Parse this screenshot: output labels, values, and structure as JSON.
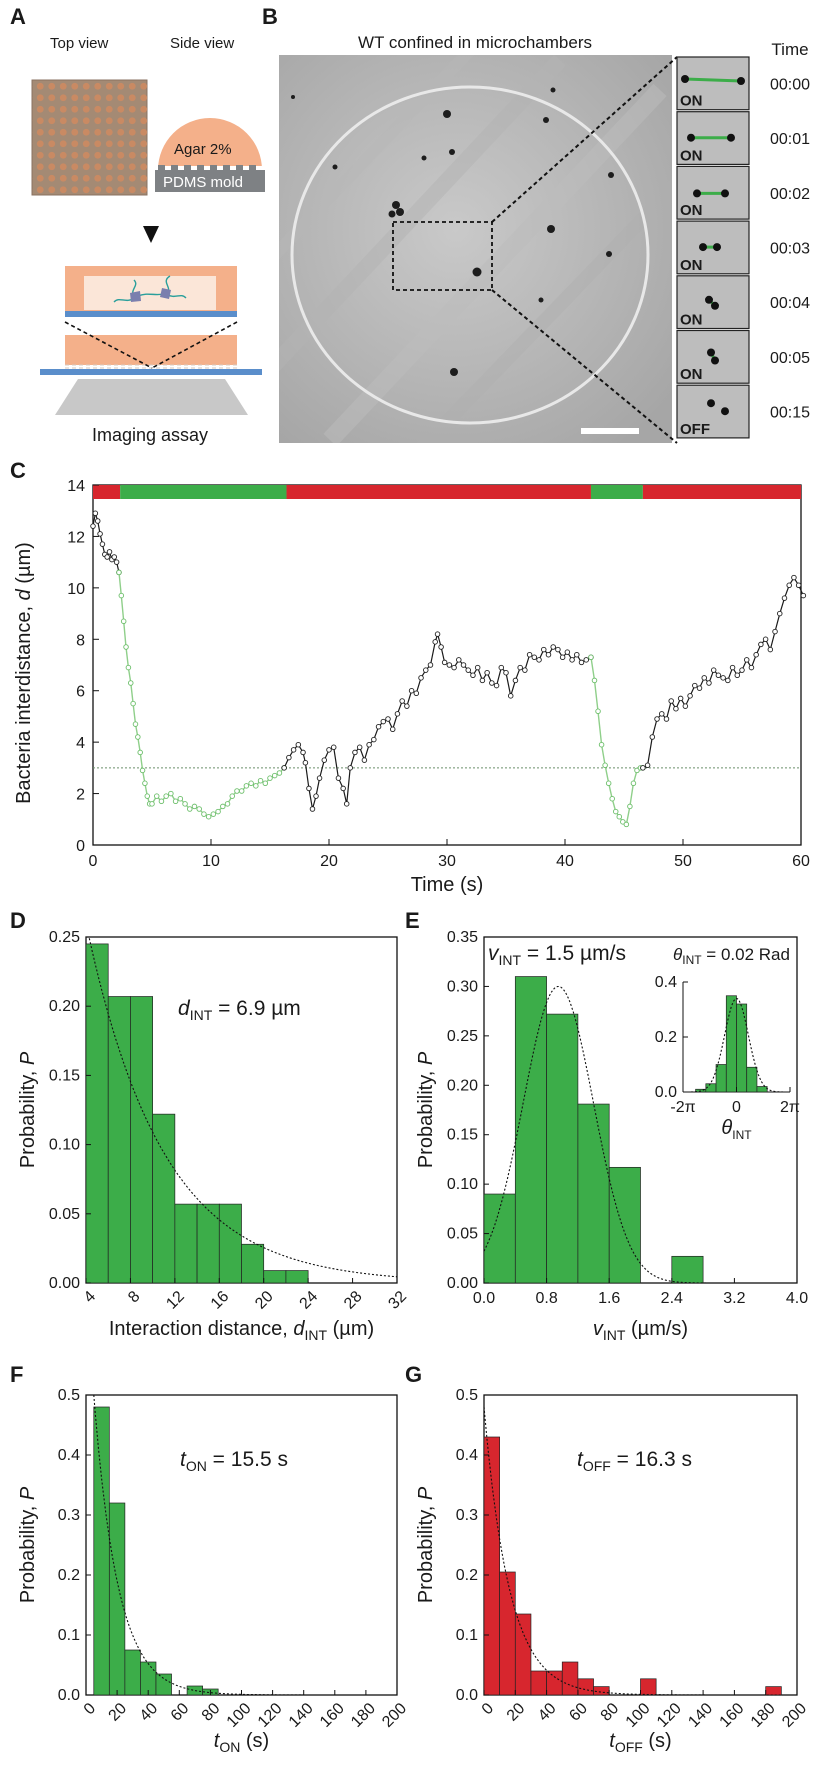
{
  "panels": {
    "A": {
      "letter": "A",
      "top_view": "Top view",
      "side_view": "Side view",
      "agar": "Agar 2%",
      "pdms": "PDMS mold",
      "caption": "Imaging assay",
      "colors": {
        "chamber": "#a48a74",
        "agar": "#f4b08a",
        "mold": "#7e8184",
        "glass": "#5a8ecb",
        "objective": "#c8c8c8"
      }
    },
    "B": {
      "letter": "B",
      "title": "WT confined in microchambers",
      "time_header": "Time",
      "frames": [
        {
          "state": "ON",
          "time": "00:00"
        },
        {
          "state": "ON",
          "time": "00:01"
        },
        {
          "state": "ON",
          "time": "00:02"
        },
        {
          "state": "ON",
          "time": "00:03"
        },
        {
          "state": "ON",
          "time": "00:04"
        },
        {
          "state": "ON",
          "time": "00:05"
        },
        {
          "state": "OFF",
          "time": "00:15"
        }
      ]
    },
    "C": {
      "letter": "C"
    },
    "D": {
      "letter": "D",
      "annotation_sym": "d",
      "annotation_sub": "INT",
      "annotation_val": " = 6.9 µm"
    },
    "E": {
      "letter": "E",
      "annotation_sym": "v",
      "annotation_sub": "INT",
      "annotation_val": " = 1.5 µm/s",
      "inset_sym": "θ",
      "inset_sub": "INT",
      "inset_val": " = 0.02 Rad"
    },
    "F": {
      "letter": "F",
      "annotation_sym": "t",
      "annotation_sub": "ON",
      "annotation_val": " = 15.5 s"
    },
    "G": {
      "letter": "G",
      "annotation_sym": "t",
      "annotation_sub": "OFF",
      "annotation_val": " = 16.3 s"
    }
  },
  "chart_data": [
    {
      "id": "C",
      "type": "line",
      "xlabel": "Time (s)",
      "ylabel_pre": "Bacteria interdistance, ",
      "ylabel_sym": "d",
      "ylabel_post": " (µm)",
      "xlim": [
        0,
        60
      ],
      "ylim": [
        0,
        14
      ],
      "xticks": [
        0,
        10,
        20,
        30,
        40,
        50,
        60
      ],
      "yticks": [
        0,
        2,
        4,
        6,
        8,
        10,
        12,
        14
      ],
      "threshold": 3,
      "colors": {
        "on": "#3cad49",
        "off": "#d7262e",
        "on_line": "#8fcf8a",
        "off_line": "#1a1a1a"
      },
      "state_bar": [
        {
          "state": "OFF",
          "from": 0,
          "to": 2.3
        },
        {
          "state": "ON",
          "from": 2.3,
          "to": 16.4
        },
        {
          "state": "OFF",
          "from": 16.4,
          "to": 42.2
        },
        {
          "state": "ON",
          "from": 42.2,
          "to": 46.6
        },
        {
          "state": "OFF",
          "from": 46.6,
          "to": 60
        }
      ],
      "series": [
        {
          "state": "OFF",
          "x": [
            0,
            0.2,
            0.4,
            0.6,
            0.8,
            1.0,
            1.2,
            1.4,
            1.6,
            1.8,
            2.0,
            2.2
          ],
          "y": [
            12.4,
            12.9,
            12.6,
            12.1,
            11.7,
            11.3,
            11.2,
            11.4,
            11.1,
            11.2,
            11.0,
            10.6
          ]
        },
        {
          "state": "ON",
          "x": [
            2.2,
            2.4,
            2.6,
            2.8,
            3.0,
            3.2,
            3.4,
            3.6,
            3.8,
            4.0,
            4.2,
            4.4,
            4.6,
            4.8,
            5.0,
            5.4,
            5.8,
            6.2,
            6.6,
            7.0,
            7.4,
            7.8,
            8.2,
            8.6,
            9.0,
            9.4,
            9.8,
            10.2,
            10.6,
            11.0,
            11.4,
            11.8,
            12.2,
            12.6,
            13.0,
            13.4,
            13.8,
            14.2,
            14.6,
            15.0,
            15.4,
            15.8,
            16.2
          ],
          "y": [
            10.6,
            9.7,
            8.7,
            7.7,
            6.9,
            6.3,
            5.5,
            4.7,
            4.2,
            3.6,
            2.9,
            2.4,
            1.9,
            1.6,
            1.6,
            1.9,
            1.7,
            1.9,
            2.0,
            1.7,
            1.8,
            1.6,
            1.4,
            1.5,
            1.4,
            1.2,
            1.1,
            1.2,
            1.3,
            1.5,
            1.6,
            1.9,
            2.1,
            2.1,
            2.3,
            2.4,
            2.3,
            2.5,
            2.4,
            2.6,
            2.7,
            2.8,
            3.0
          ]
        },
        {
          "state": "OFF",
          "x": [
            16.2,
            16.6,
            17.0,
            17.4,
            17.8,
            18.0,
            18.3,
            18.6,
            18.9,
            19.2,
            19.6,
            20.0,
            20.4,
            20.8,
            21.2,
            21.5,
            21.8,
            22.2,
            22.6,
            23.0,
            23.4,
            23.8,
            24.2,
            24.6,
            25.0,
            25.4,
            25.8,
            26.2,
            26.6,
            27.0,
            27.4,
            27.8,
            28.2,
            28.6,
            29.0,
            29.2,
            29.5,
            29.8,
            30.2,
            30.6,
            31.0,
            31.4,
            31.8,
            32.2,
            32.6,
            33.0,
            33.4,
            33.8,
            34.2,
            34.6,
            35.0,
            35.4,
            35.8,
            36.2,
            36.6,
            37.0,
            37.4,
            37.8,
            38.2,
            38.6,
            39.0,
            39.4,
            39.8,
            40.2,
            40.6,
            41.0,
            41.4,
            41.8,
            42.2
          ],
          "y": [
            3.0,
            3.4,
            3.7,
            3.9,
            3.6,
            3.2,
            2.2,
            1.4,
            1.9,
            2.6,
            3.3,
            3.7,
            3.8,
            2.6,
            2.2,
            1.6,
            3.0,
            3.6,
            3.8,
            3.3,
            3.9,
            4.1,
            4.6,
            4.8,
            4.9,
            4.5,
            5.1,
            5.6,
            5.4,
            6.0,
            5.9,
            6.5,
            6.8,
            7.0,
            7.9,
            8.2,
            7.7,
            7.1,
            7.0,
            6.9,
            7.2,
            7.0,
            6.8,
            6.6,
            6.9,
            6.4,
            6.7,
            6.3,
            6.2,
            6.9,
            6.7,
            5.8,
            6.4,
            6.9,
            6.8,
            7.4,
            7.3,
            7.2,
            7.6,
            7.4,
            7.7,
            7.6,
            7.3,
            7.5,
            7.2,
            7.4,
            7.1,
            7.2,
            7.3
          ]
        },
        {
          "state": "ON",
          "x": [
            42.2,
            42.5,
            42.8,
            43.1,
            43.4,
            43.7,
            44.0,
            44.3,
            44.6,
            44.9,
            45.2,
            45.5,
            45.8,
            46.1,
            46.4,
            46.6
          ],
          "y": [
            7.3,
            6.4,
            5.2,
            3.9,
            3.1,
            2.4,
            1.8,
            1.3,
            1.1,
            0.9,
            0.8,
            1.5,
            2.4,
            2.9,
            3.0,
            3.0
          ]
        },
        {
          "state": "OFF",
          "x": [
            46.6,
            47.0,
            47.4,
            47.8,
            48.2,
            48.6,
            49.0,
            49.4,
            49.8,
            50.2,
            50.6,
            51.0,
            51.4,
            51.8,
            52.2,
            52.6,
            53.0,
            53.4,
            53.8,
            54.2,
            54.6,
            55.0,
            55.4,
            55.8,
            56.2,
            56.6,
            57.0,
            57.4,
            57.8,
            58.2,
            58.6,
            59.0,
            59.4,
            59.8,
            60.2
          ],
          "y": [
            3.0,
            3.1,
            4.2,
            4.9,
            5.1,
            4.9,
            5.6,
            5.3,
            5.7,
            5.4,
            5.8,
            6.2,
            6.1,
            6.5,
            6.3,
            6.8,
            6.6,
            6.5,
            6.4,
            6.9,
            6.6,
            6.8,
            7.2,
            6.9,
            7.4,
            7.8,
            8.0,
            7.6,
            8.3,
            9.0,
            9.6,
            10.1,
            10.4,
            10.1,
            9.7
          ]
        }
      ]
    },
    {
      "id": "D",
      "type": "bar",
      "xlabel_pre": "Interaction distance, ",
      "xlabel_sym": "d",
      "xlabel_sub": "INT",
      "xlabel_post": " (µm)",
      "ylabel_pre": "Probability, ",
      "ylabel_sym": "P",
      "xlim": [
        4,
        32
      ],
      "ylim": [
        0,
        0.25
      ],
      "xticks": [
        4,
        8,
        12,
        16,
        20,
        24,
        28,
        32
      ],
      "yticks": [
        0,
        0.05,
        0.1,
        0.15,
        0.2,
        0.25
      ],
      "ytick_labels": [
        "0.00",
        "0.05",
        "0.10",
        "0.15",
        "0.20",
        "0.25"
      ],
      "bin_edges": [
        4,
        6,
        8,
        10,
        12,
        14,
        16,
        18,
        20,
        22,
        24
      ],
      "values": [
        0.245,
        0.207,
        0.207,
        0.122,
        0.057,
        0.057,
        0.057,
        0.028,
        0.009,
        0.009
      ],
      "fit": {
        "kind": "exp",
        "x0": 4,
        "a": 0.26,
        "scale": 6.9
      },
      "color": "#3cad49"
    },
    {
      "id": "E",
      "type": "bar",
      "xlabel_sym": "v",
      "xlabel_sub": "INT",
      "xlabel_post": " (µm/s)",
      "ylabel_pre": "Probability, ",
      "ylabel_sym": "P",
      "xlim": [
        0,
        4
      ],
      "ylim": [
        0,
        0.35
      ],
      "xticks": [
        0,
        0.8,
        1.6,
        2.4,
        3.2,
        4.0
      ],
      "xtick_labels": [
        "0.0",
        "0.8",
        "1.6",
        "2.4",
        "3.2",
        "4.0"
      ],
      "yticks": [
        0,
        0.05,
        0.1,
        0.15,
        0.2,
        0.25,
        0.3,
        0.35
      ],
      "ytick_labels": [
        "0.00",
        "0.05",
        "0.10",
        "0.15",
        "0.20",
        "0.25",
        "0.30",
        "0.35"
      ],
      "bin_edges": [
        0,
        0.4,
        0.8,
        1.2,
        1.6,
        2.0,
        2.4,
        2.8
      ],
      "values": [
        0.09,
        0.31,
        0.272,
        0.181,
        0.117,
        0,
        0.027
      ],
      "fit": {
        "kind": "gauss",
        "a": 0.3,
        "mu": 0.95,
        "sigma": 0.45
      },
      "color": "#3cad49",
      "inset": {
        "xlabel_sym": "θ",
        "xlabel_sub": "INT",
        "xlim": [
          -6.28,
          6.28
        ],
        "ylim": [
          0,
          0.4
        ],
        "xticks": [
          -6.28,
          0,
          6.28
        ],
        "xtick_labels": [
          "-2π",
          "0",
          "2π"
        ],
        "yticks": [
          0,
          0.2,
          0.4
        ],
        "ytick_labels": [
          "0.0",
          "0.2",
          "0.4"
        ],
        "bin_edges": [
          -4.8,
          -3.6,
          -2.4,
          -1.2,
          0,
          1.2,
          2.4,
          3.6
        ],
        "values": [
          0.01,
          0.03,
          0.1,
          0.35,
          0.32,
          0.09,
          0.02
        ],
        "fit": {
          "kind": "gauss",
          "a": 0.34,
          "mu": 0,
          "sigma": 1.4
        }
      }
    },
    {
      "id": "F",
      "type": "bar",
      "xlabel_sym": "t",
      "xlabel_sub": "ON",
      "xlabel_post": " (s)",
      "ylabel_pre": "Probability, ",
      "ylabel_sym": "P",
      "xlim": [
        0,
        200
      ],
      "ylim": [
        0,
        0.5
      ],
      "xticks": [
        0,
        20,
        40,
        60,
        80,
        100,
        120,
        140,
        160,
        180,
        200
      ],
      "yticks": [
        0,
        0.1,
        0.2,
        0.3,
        0.4,
        0.5
      ],
      "ytick_labels": [
        "0.0",
        "0.1",
        "0.2",
        "0.3",
        "0.4",
        "0.5"
      ],
      "bin_edges": [
        5,
        15,
        25,
        35,
        45,
        55,
        65,
        75,
        85
      ],
      "values": [
        0.48,
        0.32,
        0.075,
        0.055,
        0.035,
        0,
        0.015,
        0.01
      ],
      "fit": {
        "kind": "exp",
        "x0": 5,
        "a": 0.5,
        "scale": 15.5
      },
      "color": "#3cad49"
    },
    {
      "id": "G",
      "type": "bar",
      "xlabel_sym": "t",
      "xlabel_sub": "OFF",
      "xlabel_post": " (s)",
      "ylabel_pre": "Probability, ",
      "ylabel_sym": "P",
      "xlim": [
        0,
        200
      ],
      "ylim": [
        0,
        0.5
      ],
      "xticks": [
        0,
        20,
        40,
        60,
        80,
        100,
        120,
        140,
        160,
        180,
        200
      ],
      "yticks": [
        0,
        0.1,
        0.2,
        0.3,
        0.4,
        0.5
      ],
      "ytick_labels": [
        "0.0",
        "0.1",
        "0.2",
        "0.3",
        "0.4",
        "0.5"
      ],
      "bin_edges": [
        0,
        10,
        20,
        30,
        40,
        50,
        60,
        70,
        80,
        90,
        100,
        110,
        180,
        190
      ],
      "values": [
        0.43,
        0.205,
        0.135,
        0.04,
        0.04,
        0.055,
        0.027,
        0.014,
        0,
        0,
        0.027,
        0,
        0.014
      ],
      "bar_skip_zero": true,
      "fit": {
        "kind": "exp",
        "x0": 0,
        "a": 0.48,
        "scale": 16.3
      },
      "color": "#d7262e"
    }
  ]
}
